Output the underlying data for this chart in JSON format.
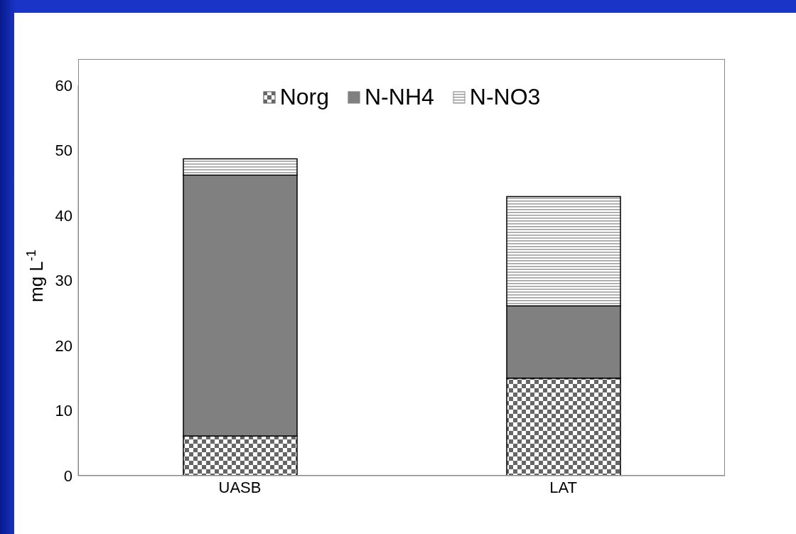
{
  "chart_data": {
    "type": "bar",
    "stacked": true,
    "categories": [
      "UASB",
      "LAT"
    ],
    "series": [
      {
        "name": "Norg",
        "color": "#666666",
        "values": [
          6.1,
          15.0
        ]
      },
      {
        "name": "N-NH4",
        "color": "#808080",
        "values": [
          40.1,
          11.1
        ]
      },
      {
        "name": "N-NO3",
        "color": "#999999",
        "values": [
          2.5,
          16.8
        ]
      }
    ],
    "ylabel": "mg L$^{-1}$",
    "ylim": [
      0,
      60
    ],
    "yticks": [
      0,
      10,
      20,
      30,
      40,
      50,
      60
    ],
    "grid": false,
    "legend": "top"
  }
}
